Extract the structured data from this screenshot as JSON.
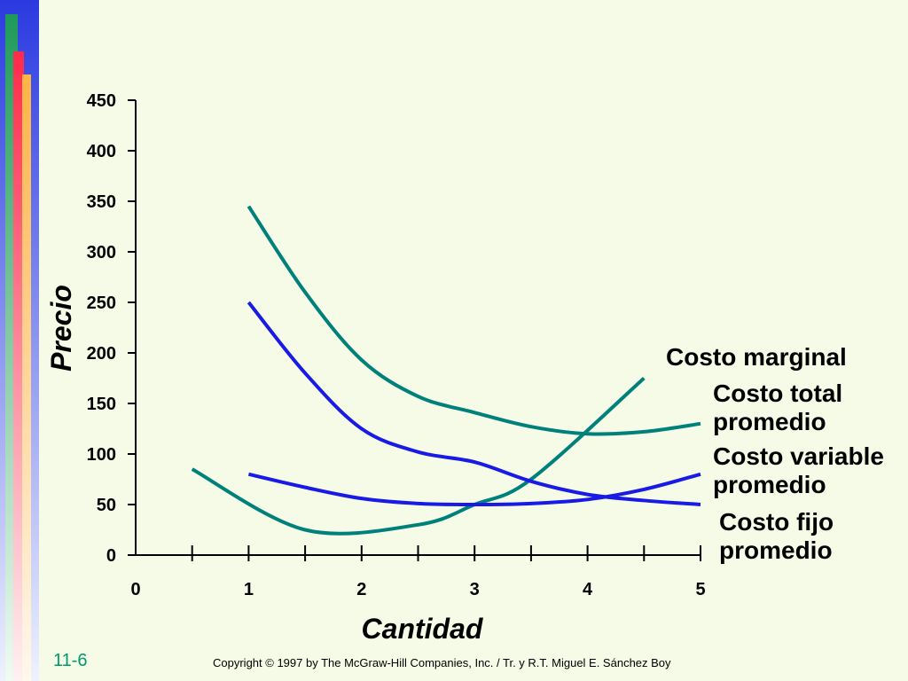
{
  "slide": {
    "number": "11-6",
    "copyright": "Copyright © 1997 by The McGraw-Hill Companies, Inc. / Tr. y R.T. Miguel E. Sánchez Boy",
    "accent_colors": {
      "teal": "#00807a",
      "blue": "#1a1ae6",
      "red": "#ff2a4a",
      "orange": "#ffb347",
      "green": "#1f9a5a",
      "sidebar_blue": "#2a3ae0"
    }
  },
  "chart_data": {
    "type": "line",
    "title": "",
    "xlabel": "Cantidad",
    "ylabel": "Precio",
    "xlim": [
      0,
      5
    ],
    "ylim": [
      0,
      450
    ],
    "x_ticks": [
      0,
      1,
      2,
      3,
      4,
      5
    ],
    "x_minor_ticks": [
      0.5,
      1.5,
      2.5,
      3.5,
      4.5
    ],
    "y_ticks": [
      0,
      50,
      100,
      150,
      200,
      250,
      300,
      350,
      400,
      450
    ],
    "grid": false,
    "legend": "inline-right",
    "series": [
      {
        "name": "Costo marginal",
        "color": "#00807a",
        "label_lines": [
          "Costo marginal"
        ],
        "points": [
          [
            0.5,
            85
          ],
          [
            1.5,
            25
          ],
          [
            2.5,
            30
          ],
          [
            3.0,
            50
          ],
          [
            3.5,
            75
          ],
          [
            4.5,
            175
          ]
        ]
      },
      {
        "name": "Costo total promedio",
        "color": "#00807a",
        "label_lines": [
          "Costo total",
          "promedio"
        ],
        "points": [
          [
            1.0,
            345
          ],
          [
            1.5,
            260
          ],
          [
            2.0,
            193
          ],
          [
            2.5,
            157
          ],
          [
            3.0,
            141
          ],
          [
            3.5,
            127
          ],
          [
            4.0,
            120
          ],
          [
            4.5,
            122
          ],
          [
            5.0,
            130
          ]
        ]
      },
      {
        "name": "Costo variable promedio",
        "color": "#1a1ae6",
        "label_lines": [
          "Costo variable",
          "promedio"
        ],
        "points": [
          [
            1.0,
            80
          ],
          [
            1.5,
            67
          ],
          [
            2.0,
            56
          ],
          [
            2.5,
            51
          ],
          [
            3.0,
            50
          ],
          [
            3.5,
            51
          ],
          [
            4.0,
            55
          ],
          [
            4.5,
            65
          ],
          [
            5.0,
            80
          ]
        ]
      },
      {
        "name": "Costo fijo promedio",
        "color": "#1a1ae6",
        "label_lines": [
          "Costo fijo",
          "promedio"
        ],
        "points": [
          [
            1.0,
            250
          ],
          [
            1.5,
            180
          ],
          [
            2.0,
            125
          ],
          [
            2.5,
            102
          ],
          [
            3.0,
            92
          ],
          [
            3.5,
            73
          ],
          [
            4.0,
            60
          ],
          [
            4.5,
            54
          ],
          [
            5.0,
            50
          ]
        ]
      }
    ]
  }
}
